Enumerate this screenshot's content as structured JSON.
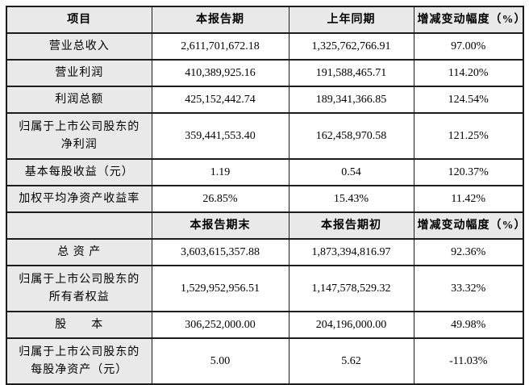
{
  "table": {
    "headers1": [
      "项目",
      "本报告期",
      "上年同期",
      "增减变动幅度（%）"
    ],
    "headers2": [
      "",
      "本报告期末",
      "本报告期初",
      "增减变动幅度（%）"
    ],
    "section1": [
      {
        "label": "营业总收入",
        "current": "2,611,701,672.18",
        "prior": "1,325,762,766.91",
        "change": "97.00%"
      },
      {
        "label": "营业利润",
        "current": "410,389,925.16",
        "prior": "191,588,465.71",
        "change": "114.20%"
      },
      {
        "label": "利润总额",
        "current": "425,152,442.74",
        "prior": "189,341,366.85",
        "change": "124.54%"
      },
      {
        "label": "归属于上市公司股东的\n净利润",
        "current": "359,441,553.40",
        "prior": "162,458,970.58",
        "change": "121.25%"
      },
      {
        "label": "基本每股收益（元）",
        "current": "1.19",
        "prior": "0.54",
        "change": "120.37%"
      },
      {
        "label": "加权平均净资产收益率",
        "current": "26.85%",
        "prior": "15.43%",
        "change": "11.42%"
      }
    ],
    "section2": [
      {
        "label": "总 资 产",
        "current": "3,603,615,357.88",
        "prior": "1,873,394,816.97",
        "change": "92.36%"
      },
      {
        "label": "归属于上市公司股东的\n所有者权益",
        "current": "1,529,952,956.51",
        "prior": "1,147,578,529.32",
        "change": "33.32%"
      },
      {
        "label": "股　　本",
        "current": "306,252,000.00",
        "prior": "204,196,000.00",
        "change": "49.98%"
      },
      {
        "label": "归属于上市公司股东的\n每股净资产（元）",
        "current": "5.00",
        "prior": "5.62",
        "change": "-11.03%"
      }
    ],
    "colors": {
      "header_bg": "#e9e9e9",
      "border": "#1c1c1c",
      "cell_bg": "#ffffff"
    }
  }
}
